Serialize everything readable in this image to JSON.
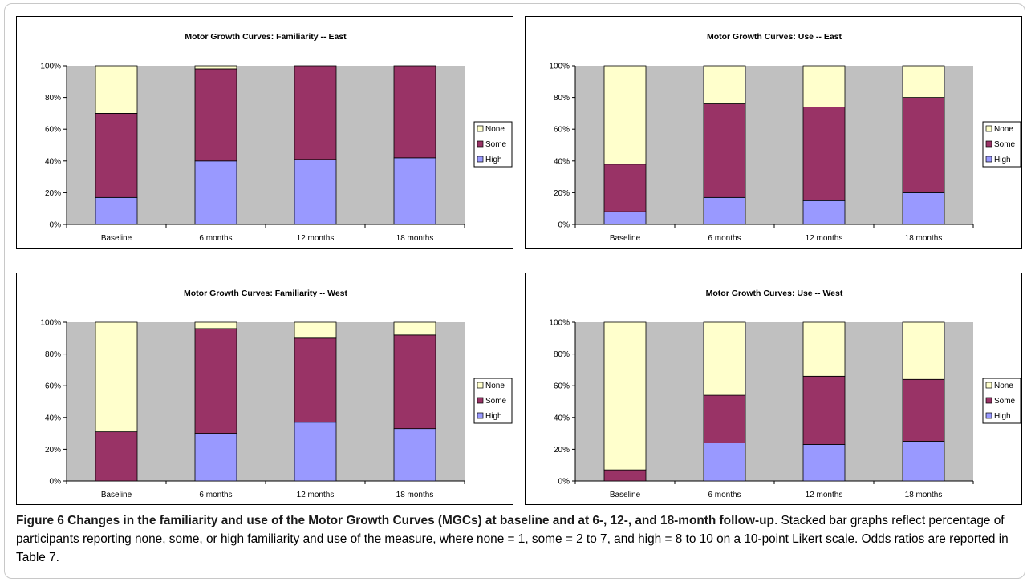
{
  "colors": {
    "plot_background": "#c0c0c0",
    "None": "#ffffcc",
    "Some": "#993366",
    "High": "#9999ff"
  },
  "chart_data": [
    {
      "type": "bar",
      "stacked": true,
      "title": "Motor Growth Curves: Familiarity -- East",
      "categories": [
        "Baseline",
        "6 months",
        "12 months",
        "18 months"
      ],
      "y_ticks": [
        "0%",
        "20%",
        "40%",
        "60%",
        "80%",
        "100%"
      ],
      "ylim": [
        0,
        100
      ],
      "legend": [
        "None",
        "Some",
        "High"
      ],
      "legend_position": "right",
      "grid": false,
      "series": [
        {
          "name": "High",
          "values": [
            17,
            40,
            41,
            42
          ]
        },
        {
          "name": "Some",
          "values": [
            53,
            58,
            59,
            58
          ]
        },
        {
          "name": "None",
          "values": [
            30,
            2,
            0,
            0
          ]
        }
      ]
    },
    {
      "type": "bar",
      "stacked": true,
      "title": "Motor Growth Curves: Use -- East",
      "categories": [
        "Baseline",
        "6 months",
        "12 months",
        "18 months"
      ],
      "y_ticks": [
        "0%",
        "20%",
        "40%",
        "60%",
        "80%",
        "100%"
      ],
      "ylim": [
        0,
        100
      ],
      "legend": [
        "None",
        "Some",
        "High"
      ],
      "legend_position": "right",
      "grid": false,
      "series": [
        {
          "name": "High",
          "values": [
            8,
            17,
            15,
            20
          ]
        },
        {
          "name": "Some",
          "values": [
            30,
            59,
            59,
            60
          ]
        },
        {
          "name": "None",
          "values": [
            62,
            24,
            26,
            20
          ]
        }
      ]
    },
    {
      "type": "bar",
      "stacked": true,
      "title": "Motor Growth Curves: Familiarity -- West",
      "categories": [
        "Baseline",
        "6 months",
        "12 months",
        "18 months"
      ],
      "y_ticks": [
        "0%",
        "20%",
        "40%",
        "60%",
        "80%",
        "100%"
      ],
      "ylim": [
        0,
        100
      ],
      "legend": [
        "None",
        "Some",
        "High"
      ],
      "legend_position": "right",
      "grid": false,
      "series": [
        {
          "name": "High",
          "values": [
            0,
            30,
            37,
            33
          ]
        },
        {
          "name": "Some",
          "values": [
            31,
            66,
            53,
            59
          ]
        },
        {
          "name": "None",
          "values": [
            69,
            4,
            10,
            8
          ]
        }
      ]
    },
    {
      "type": "bar",
      "stacked": true,
      "title": "Motor Growth Curves: Use -- West",
      "categories": [
        "Baseline",
        "6 months",
        "12 months",
        "18 months"
      ],
      "y_ticks": [
        "0%",
        "20%",
        "40%",
        "60%",
        "80%",
        "100%"
      ],
      "ylim": [
        0,
        100
      ],
      "legend": [
        "None",
        "Some",
        "High"
      ],
      "legend_position": "right",
      "grid": false,
      "series": [
        {
          "name": "High",
          "values": [
            0,
            24,
            23,
            25
          ]
        },
        {
          "name": "Some",
          "values": [
            7,
            30,
            43,
            39
          ]
        },
        {
          "name": "None",
          "values": [
            93,
            46,
            34,
            36
          ]
        }
      ]
    }
  ],
  "caption": {
    "title": "Figure 6 Changes in the familiarity and use of the Motor Growth Curves (MGCs) at baseline and at 6-, 12-, and 18-month follow-up",
    "body": "Stacked bar graphs reflect percentage of participants reporting none, some, or high familiarity and use of the measure, where none = 1, some = 2 to 7, and high = 8 to 10 on a 10-point Likert scale. Odds ratios are reported in Table 7."
  }
}
